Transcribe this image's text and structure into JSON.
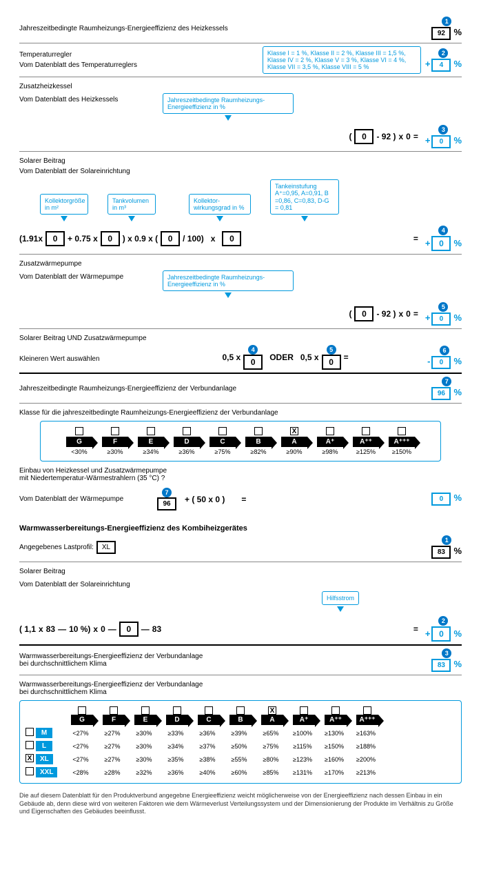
{
  "r1": {
    "label": "Jahreszeitbedingte Raumheizungs-Energieeffizienz des Heizkessels",
    "num": "1",
    "val": "92"
  },
  "r2": {
    "label": "Temperaturregler",
    "sub": "Vom Datenblatt des Temperaturreglers",
    "info": "Klasse I = 1 %, Klasse II = 2 %, Klasse III = 1,5 %, Klasse IV = 2 %, Klasse V = 3 %, Klasse VI = 4 %, Klasse VII = 3,5 %, Klasse VIII = 5 %",
    "num": "2",
    "val": "4"
  },
  "r3": {
    "label": "Zusatzheizkessel",
    "sub": "Vom Datenblatt des Heizkessels",
    "info": "Jahreszeitbedingte Raumheizungs-Energieeffizienz in %",
    "f1": "0",
    "f2": "- 92 )",
    "f3": "x",
    "f4": "0",
    "f5": "=",
    "num": "3",
    "val": "0"
  },
  "r4": {
    "label": "Solarer Beitrag",
    "sub": "Vom Datenblatt der Solareinrichtung",
    "h1": "Kollektorgröße in m²",
    "h2": "Tankvolumen in m³",
    "h3": "Kollektor-wirkungsgrad in %",
    "h4": "Tankeinstufung A⁺=0,95, A=0,91, B =0,86, C=0,83, D-G = 0,81",
    "p1": "(1.91x",
    "v1": "0",
    "p2": "+ 0.75 x",
    "v2": "0",
    "p3": ") x 0.9 x (",
    "v3": "0",
    "p4": "/ 100)",
    "p5": "x",
    "v4": "0",
    "p6": "=",
    "num": "4",
    "val": "0"
  },
  "r5": {
    "label": "Zusatzwärmepumpe",
    "sub": "Vom Datenblatt der Wärmepumpe",
    "info": "Jahreszeitbedingte Raumheizungs-Energieeffizienz in %",
    "f1": "0",
    "f2": "- 92 )",
    "f3": "x",
    "f4": "0",
    "f5": "=",
    "num": "5",
    "val": "0"
  },
  "r6": {
    "label": "Solarer Beitrag UND Zusatzwärmepumpe",
    "sub": "Kleineren Wert auswählen",
    "p1": "0,5 x",
    "n4": "4",
    "v1": "0",
    "p2": "ODER",
    "p3": "0,5 x",
    "n5": "5",
    "v2": "0",
    "p4": "=",
    "num": "6",
    "val": "0"
  },
  "r7": {
    "label": "Jahreszeitbedingte Raumheizungs-Energieeffizienz der Verbundanlage",
    "num": "7",
    "val": "96"
  },
  "r8": {
    "label": "Klasse für die jahreszeitbedingte Raumheizungs-Energieeffizienz der Verbundanlage"
  },
  "classes": [
    {
      "l": "G",
      "p": "<30%",
      "x": ""
    },
    {
      "l": "F",
      "p": "≥30%",
      "x": ""
    },
    {
      "l": "E",
      "p": "≥34%",
      "x": ""
    },
    {
      "l": "D",
      "p": "≥36%",
      "x": ""
    },
    {
      "l": "C",
      "p": "≥75%",
      "x": ""
    },
    {
      "l": "B",
      "p": "≥82%",
      "x": ""
    },
    {
      "l": "A",
      "p": "≥90%",
      "x": "X"
    },
    {
      "l": "A⁺",
      "p": "≥98%",
      "x": ""
    },
    {
      "l": "A⁺⁺",
      "p": "≥125%",
      "x": ""
    },
    {
      "l": "A⁺⁺⁺",
      "p": "≥150%",
      "x": ""
    }
  ],
  "r9": {
    "l1": "Einbau von Heizkessel und Zusatzwärmepumpe",
    "l2": "mit Niedertemperatur-Wärmestrahlern (35 °C) ?",
    "l3": "Vom Datenblatt der Wärmepumpe",
    "n": "7",
    "v1": "96",
    "p1": "+ ( 50 x 0 )",
    "p2": "=",
    "val": "0"
  },
  "ww": {
    "title": "Warmwasserbereitungs-Energieeffizienz des Kombiheizgerätes",
    "profile_label": "Angegebenes Lastprofil:",
    "profile": "XL"
  },
  "w1": {
    "num": "1",
    "val": "83"
  },
  "w2": {
    "label": "Solarer Beitrag",
    "sub": "Vom Datenblatt der Solareinrichtung",
    "hint": "Hilfsstrom",
    "p1": "( 1,1",
    "p2": "x",
    "p3": "83",
    "p4": "—",
    "p5": "10 %)",
    "p6": "x",
    "p7": "0",
    "p8": "—",
    "v1": "0",
    "p9": "—",
    "p10": "83",
    "p11": "=",
    "num": "2",
    "val": "0"
  },
  "w3": {
    "l1": "Warmwasserbereitungs-Energieeffizienz der Verbundanlage",
    "l2": "bei durchschnittlichem Klima",
    "num": "3",
    "val": "83"
  },
  "w4": {
    "l1": "Warmwasserbereitungs-Energieeffizienz der Verbundanlage",
    "l2": "bei durchschnittlichem Klima"
  },
  "wwclasses": [
    "G",
    "F",
    "E",
    "D",
    "C",
    "B",
    "A",
    "A⁺",
    "A⁺⁺",
    "A⁺⁺⁺"
  ],
  "wwchecks": [
    "",
    "",
    "",
    "",
    "",
    "",
    "X",
    "",
    "",
    ""
  ],
  "profiles": [
    {
      "n": "M",
      "x": "",
      "r": [
        "<27%",
        "≥27%",
        "≥30%",
        "≥33%",
        "≥36%",
        "≥39%",
        "≥65%",
        "≥100%",
        "≥130%",
        "≥163%"
      ]
    },
    {
      "n": "L",
      "x": "",
      "r": [
        "<27%",
        "≥27%",
        "≥30%",
        "≥34%",
        "≥37%",
        "≥50%",
        "≥75%",
        "≥115%",
        "≥150%",
        "≥188%"
      ]
    },
    {
      "n": "XL",
      "x": "X",
      "r": [
        "<27%",
        "≥27%",
        "≥30%",
        "≥35%",
        "≥38%",
        "≥55%",
        "≥80%",
        "≥123%",
        "≥160%",
        "≥200%"
      ]
    },
    {
      "n": "XXL",
      "x": "",
      "r": [
        "<28%",
        "≥28%",
        "≥32%",
        "≥36%",
        "≥40%",
        "≥60%",
        "≥85%",
        "≥131%",
        "≥170%",
        "≥213%"
      ]
    }
  ],
  "foot": "Die auf diesem Datenblatt für den Produktverbund angegebne Energieeffizienz weicht möglicherweise von der Energieeffizienz nach dessen Einbau in ein Gebäude ab, denn diese wird von weiteren Faktoren wie dem Wärmeverlust Verteilungssystem und der Dimensionierung der Produkte im Verhältnis zu Größe und Eigenschaften des Gebäudes beeinflusst."
}
